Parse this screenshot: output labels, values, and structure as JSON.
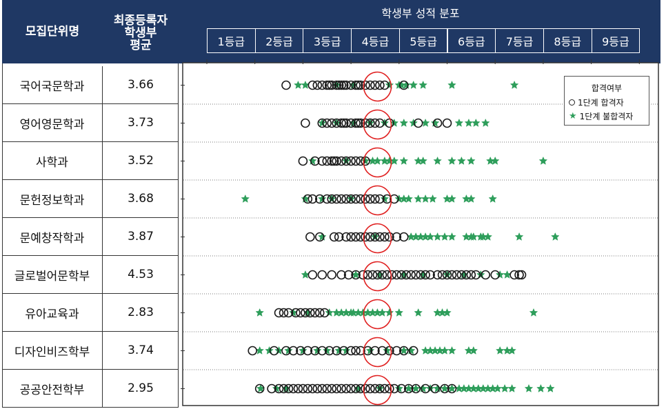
{
  "header": {
    "col1": "모집단위명",
    "col2_lines": [
      "최종등록자",
      "학생부",
      "평균"
    ],
    "chart_title": "학생부 성적 분포"
  },
  "chart_data": {
    "type": "scatter",
    "title": "학생부 성적 분포",
    "x_categories": [
      "1등급",
      "2등급",
      "3등급",
      "4등급",
      "5등급",
      "6등급",
      "7등급",
      "8등급",
      "9등급"
    ],
    "xlim": [
      1,
      9
    ],
    "legend": {
      "title": "합격여부",
      "position": "top-right",
      "items": [
        {
          "name": "1단계 합격자",
          "marker": "circle-open",
          "color": "#222222"
        },
        {
          "name": "1단계 불합격자",
          "marker": "star",
          "color": "#2e9e5b"
        }
      ]
    },
    "rows": [
      {
        "dept": "국어국문학과",
        "avg": "3.66",
        "pass": [
          2.15,
          2.7,
          2.8,
          2.9,
          3.0,
          3.05,
          3.1,
          3.2,
          3.25,
          3.3,
          3.35,
          3.4,
          3.5,
          3.6,
          3.65,
          3.7,
          3.8,
          3.9,
          4.0,
          4.1,
          4.2,
          4.6
        ],
        "fail": [
          2.4,
          2.55,
          3.2,
          3.55,
          4.3,
          4.5,
          4.55,
          4.65,
          4.8,
          5.0,
          5.6,
          6.9
        ]
      },
      {
        "dept": "영어영문학과",
        "avg": "3.73",
        "pass": [
          2.55,
          2.9,
          3.0,
          3.1,
          3.2,
          3.3,
          3.35,
          3.4,
          3.5,
          3.6,
          3.65,
          3.7,
          3.8,
          3.9,
          4.0,
          4.1,
          4.3,
          4.9,
          5.3,
          5.5
        ],
        "fail": [
          2.9,
          3.2,
          3.55,
          3.9,
          4.2,
          4.4,
          4.6,
          4.8,
          5.05,
          5.25,
          5.75,
          5.95,
          6.1,
          6.3
        ]
      },
      {
        "dept": "사학과",
        "avg": "3.52",
        "pass": [
          2.5,
          2.75,
          2.9,
          3.0,
          3.1,
          3.15,
          3.2,
          3.3,
          3.4,
          3.5,
          3.6,
          3.7,
          3.8
        ],
        "fail": [
          2.7,
          3.4,
          3.8,
          3.95,
          4.05,
          4.2,
          4.3,
          4.4,
          4.6,
          4.9,
          5.0,
          5.3,
          5.6,
          5.8,
          6.0,
          6.4,
          6.5,
          7.5
        ]
      },
      {
        "dept": "문헌정보학과",
        "avg": "3.68",
        "pass": [
          2.6,
          2.7,
          2.85,
          3.0,
          3.1,
          3.2,
          3.3,
          3.4,
          3.5,
          3.6,
          3.7,
          3.8,
          3.9,
          4.0,
          4.1,
          4.25,
          4.4
        ],
        "fail": [
          1.3,
          2.55,
          2.9,
          3.1,
          3.5,
          4.2,
          4.5,
          4.6,
          4.7,
          4.9,
          5.05,
          5.2,
          5.5,
          5.6,
          5.9,
          6.0,
          6.45
        ]
      },
      {
        "dept": "문예창작학과",
        "avg": "3.87",
        "pass": [
          2.65,
          2.85,
          3.15,
          3.25,
          3.4,
          3.5,
          3.6,
          3.7,
          3.8,
          3.9,
          4.0,
          4.1,
          4.2,
          4.3,
          4.45,
          4.6
        ],
        "fail": [
          2.9,
          4.0,
          4.75,
          4.85,
          4.95,
          5.05,
          5.15,
          5.3,
          5.45,
          5.6,
          5.9,
          6.0,
          6.05,
          6.2,
          6.25,
          6.35,
          7.0,
          7.75
        ]
      },
      {
        "dept": "글로벌어문학부",
        "avg": "4.53",
        "pass": [
          2.7,
          2.9,
          3.1,
          3.3,
          3.45,
          3.6,
          3.75,
          3.85,
          3.95,
          4.05,
          4.15,
          4.25,
          4.35,
          4.45,
          4.55,
          4.65,
          4.75,
          4.85,
          4.95,
          5.05,
          5.15,
          5.3,
          5.4,
          5.5,
          5.6,
          5.7,
          5.8,
          5.9,
          6.0,
          6.1,
          6.3,
          6.5,
          6.9,
          7.0,
          7.05
        ],
        "fail": [
          2.55,
          3.6,
          4.1,
          4.6,
          5.0,
          5.5,
          5.85,
          6.2,
          6.6,
          6.75
        ]
      },
      {
        "dept": "유아교육과",
        "avg": "2.83",
        "pass": [
          2.0,
          2.1,
          2.2,
          2.35,
          2.45,
          2.55,
          2.65,
          2.75,
          2.85,
          2.95
        ],
        "fail": [
          1.6,
          2.3,
          2.6,
          3.05,
          3.2,
          3.3,
          3.4,
          3.5,
          3.55,
          3.65,
          3.75,
          3.85,
          3.95,
          4.05,
          4.15,
          4.3,
          4.5,
          4.9,
          5.3,
          5.4,
          5.5,
          7.3
        ]
      },
      {
        "dept": "디자인비즈학부",
        "avg": "3.74",
        "pass": [
          1.45,
          1.9,
          2.15,
          2.3,
          2.45,
          2.6,
          2.75,
          2.9,
          3.05,
          3.2,
          3.35,
          3.5,
          3.6,
          3.7,
          3.85,
          4.0,
          4.15,
          4.3,
          4.45,
          4.6,
          4.8
        ],
        "fail": [
          1.6,
          1.8,
          2.0,
          2.2,
          2.5,
          2.8,
          3.0,
          3.25,
          3.4,
          3.9,
          4.25,
          4.6,
          4.75,
          5.05,
          5.15,
          5.25,
          5.35,
          5.45,
          5.6,
          5.95,
          6.05,
          6.6,
          6.75,
          6.85
        ]
      },
      {
        "dept": "공공안전학부",
        "avg": "2.95",
        "pass": [
          1.6,
          1.85,
          2.0,
          2.1,
          2.2,
          2.3,
          2.4,
          2.5,
          2.6,
          2.7,
          2.8,
          2.9,
          3.0,
          3.1,
          3.2,
          3.3,
          3.4,
          3.5,
          3.6,
          3.7,
          3.8,
          3.9,
          4.0,
          4.1,
          4.2,
          4.3,
          4.4,
          4.55,
          4.7,
          4.85,
          5.05,
          5.25,
          5.45,
          5.6
        ],
        "fail": [
          1.62,
          1.95,
          2.15,
          3.65,
          4.1,
          4.5,
          4.7,
          4.85,
          5.0,
          5.15,
          5.3,
          5.45,
          5.6,
          5.75,
          5.85,
          5.95,
          6.05,
          6.15,
          6.25,
          6.35,
          6.45,
          6.55,
          6.7,
          6.85,
          7.2,
          7.45,
          7.65
        ]
      }
    ],
    "annotations": [
      {
        "shape": "hand-drawn red ellipse",
        "color": "#e02020",
        "x_center": 4.05
      }
    ]
  }
}
